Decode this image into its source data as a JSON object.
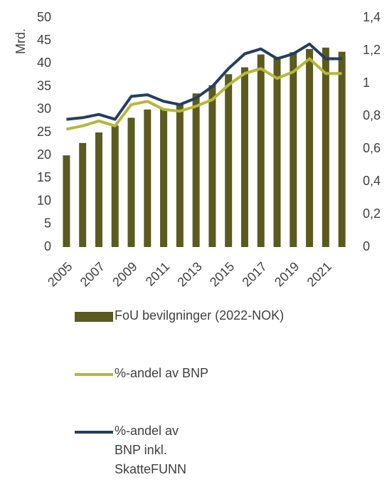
{
  "chart_data": {
    "type": "bar-line",
    "ylabel": "Mrd.",
    "categories": [
      "2005",
      null,
      "2007",
      null,
      "2009",
      null,
      "2011",
      null,
      "2013",
      null,
      "2015",
      null,
      "2017",
      null,
      "2019",
      null,
      "2021",
      null
    ],
    "series": [
      {
        "name": "FoU bevilgninger (2022-NOK)",
        "type": "bar",
        "color": "#5b5a1f",
        "values": [
          20,
          22.7,
          25,
          26.5,
          28.2,
          30,
          30.2,
          31.2,
          33.5,
          35.3,
          37.7,
          39.2,
          42,
          41.5,
          42.5,
          43.2,
          43.5,
          42.6
        ]
      },
      {
        "name": "%-andel av BNP",
        "type": "line",
        "axis": "y2",
        "color": "#b5b83a",
        "values": [
          0.72,
          0.74,
          0.77,
          0.74,
          0.87,
          0.89,
          0.84,
          0.83,
          0.86,
          0.9,
          0.99,
          1.06,
          1.09,
          1.03,
          1.07,
          1.15,
          1.06,
          1.06
        ]
      },
      {
        "name": "%-andel av BNP inkl. SkatteFUNN",
        "type": "line",
        "axis": "y2",
        "color": "#243f5e",
        "values": [
          0.78,
          0.79,
          0.81,
          0.78,
          0.92,
          0.93,
          0.89,
          0.87,
          0.91,
          0.98,
          1.09,
          1.18,
          1.21,
          1.15,
          1.18,
          1.24,
          1.15,
          1.15
        ]
      }
    ],
    "ylim": [
      0,
      50
    ],
    "yticks": [
      0,
      5,
      10,
      15,
      20,
      25,
      30,
      35,
      40,
      45,
      50
    ],
    "y2lim": [
      0,
      1.4
    ],
    "y2ticks": [
      0,
      {
        "value": 0.2,
        "label": "0,2"
      },
      {
        "value": 0.4,
        "label": "0,4"
      },
      {
        "value": 0.6,
        "label": "0,6"
      },
      {
        "value": 0.8,
        "label": "0,8"
      },
      1,
      {
        "value": 1.2,
        "label": "1,2"
      },
      {
        "value": 1.4,
        "label": "1,4"
      }
    ],
    "legend": "bottom"
  }
}
